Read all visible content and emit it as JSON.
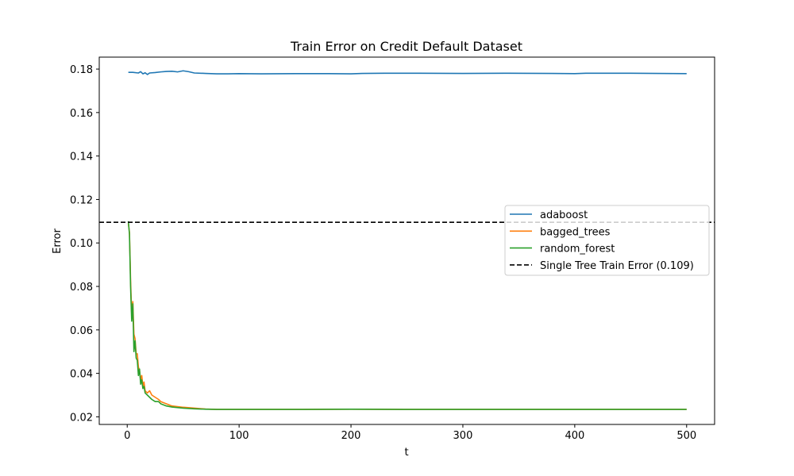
{
  "chart_data": {
    "type": "line",
    "title": "Train Error on Credit Default Dataset",
    "xlabel": "t",
    "ylabel": "Error",
    "xlim": [
      -25,
      525
    ],
    "ylim": [
      0.0165,
      0.1855
    ],
    "xticks": [
      0,
      100,
      200,
      300,
      400,
      500
    ],
    "yticks": [
      0.02,
      0.04,
      0.06,
      0.08,
      0.1,
      0.12,
      0.14,
      0.16,
      0.18
    ],
    "xtick_labels": [
      "0",
      "100",
      "200",
      "300",
      "400",
      "500"
    ],
    "ytick_labels": [
      "0.02",
      "0.04",
      "0.06",
      "0.08",
      "0.10",
      "0.12",
      "0.14",
      "0.16",
      "0.18"
    ],
    "grid": false,
    "legend_position": "center-right",
    "series": [
      {
        "name": "adaboost",
        "color": "#1f77b4",
        "x": [
          1,
          5,
          10,
          12,
          14,
          16,
          18,
          20,
          25,
          30,
          35,
          40,
          45,
          50,
          55,
          60,
          70,
          80,
          90,
          100,
          120,
          150,
          180,
          200,
          210,
          230,
          260,
          300,
          340,
          380,
          400,
          410,
          450,
          500
        ],
        "y": [
          0.1785,
          0.1785,
          0.1782,
          0.1788,
          0.1778,
          0.1783,
          0.1775,
          0.1782,
          0.1784,
          0.1787,
          0.1789,
          0.179,
          0.1787,
          0.1792,
          0.1788,
          0.1782,
          0.178,
          0.1778,
          0.1778,
          0.1779,
          0.1778,
          0.1779,
          0.1779,
          0.1778,
          0.178,
          0.1781,
          0.1781,
          0.178,
          0.1781,
          0.178,
          0.1779,
          0.1781,
          0.1781,
          0.1779
        ]
      },
      {
        "name": "bagged_trees",
        "color": "#ff7f0e",
        "x": [
          1,
          2,
          3,
          4,
          5,
          6,
          7,
          8,
          9,
          10,
          11,
          12,
          13,
          14,
          15,
          16,
          18,
          20,
          22,
          25,
          28,
          30,
          35,
          40,
          50,
          60,
          70,
          80,
          100,
          150,
          200,
          250,
          300,
          400,
          500
        ],
        "y": [
          0.109,
          0.105,
          0.083,
          0.067,
          0.073,
          0.058,
          0.056,
          0.049,
          0.049,
          0.043,
          0.041,
          0.037,
          0.039,
          0.034,
          0.036,
          0.032,
          0.031,
          0.032,
          0.03,
          0.029,
          0.028,
          0.027,
          0.026,
          0.025,
          0.0244,
          0.024,
          0.0236,
          0.0234,
          0.0234,
          0.0234,
          0.0235,
          0.0234,
          0.0234,
          0.0234,
          0.0234
        ]
      },
      {
        "name": "random_forest",
        "color": "#2ca02c",
        "x": [
          1,
          2,
          3,
          4,
          5,
          6,
          7,
          8,
          9,
          10,
          11,
          12,
          13,
          14,
          15,
          16,
          18,
          20,
          22,
          25,
          28,
          30,
          35,
          40,
          50,
          60,
          70,
          80,
          100,
          150,
          200,
          250,
          300,
          400,
          500
        ],
        "y": [
          0.11,
          0.104,
          0.08,
          0.064,
          0.072,
          0.05,
          0.055,
          0.047,
          0.046,
          0.039,
          0.042,
          0.035,
          0.037,
          0.033,
          0.034,
          0.031,
          0.03,
          0.029,
          0.028,
          0.027,
          0.027,
          0.026,
          0.025,
          0.0245,
          0.024,
          0.0237,
          0.0235,
          0.0234,
          0.0234,
          0.0234,
          0.0235,
          0.0234,
          0.0234,
          0.0234,
          0.0234
        ]
      }
    ],
    "hlines": [
      {
        "name": "Single Tree Train Error (0.109)",
        "y": 0.1095,
        "color": "#000000",
        "style": "dashed"
      }
    ]
  }
}
